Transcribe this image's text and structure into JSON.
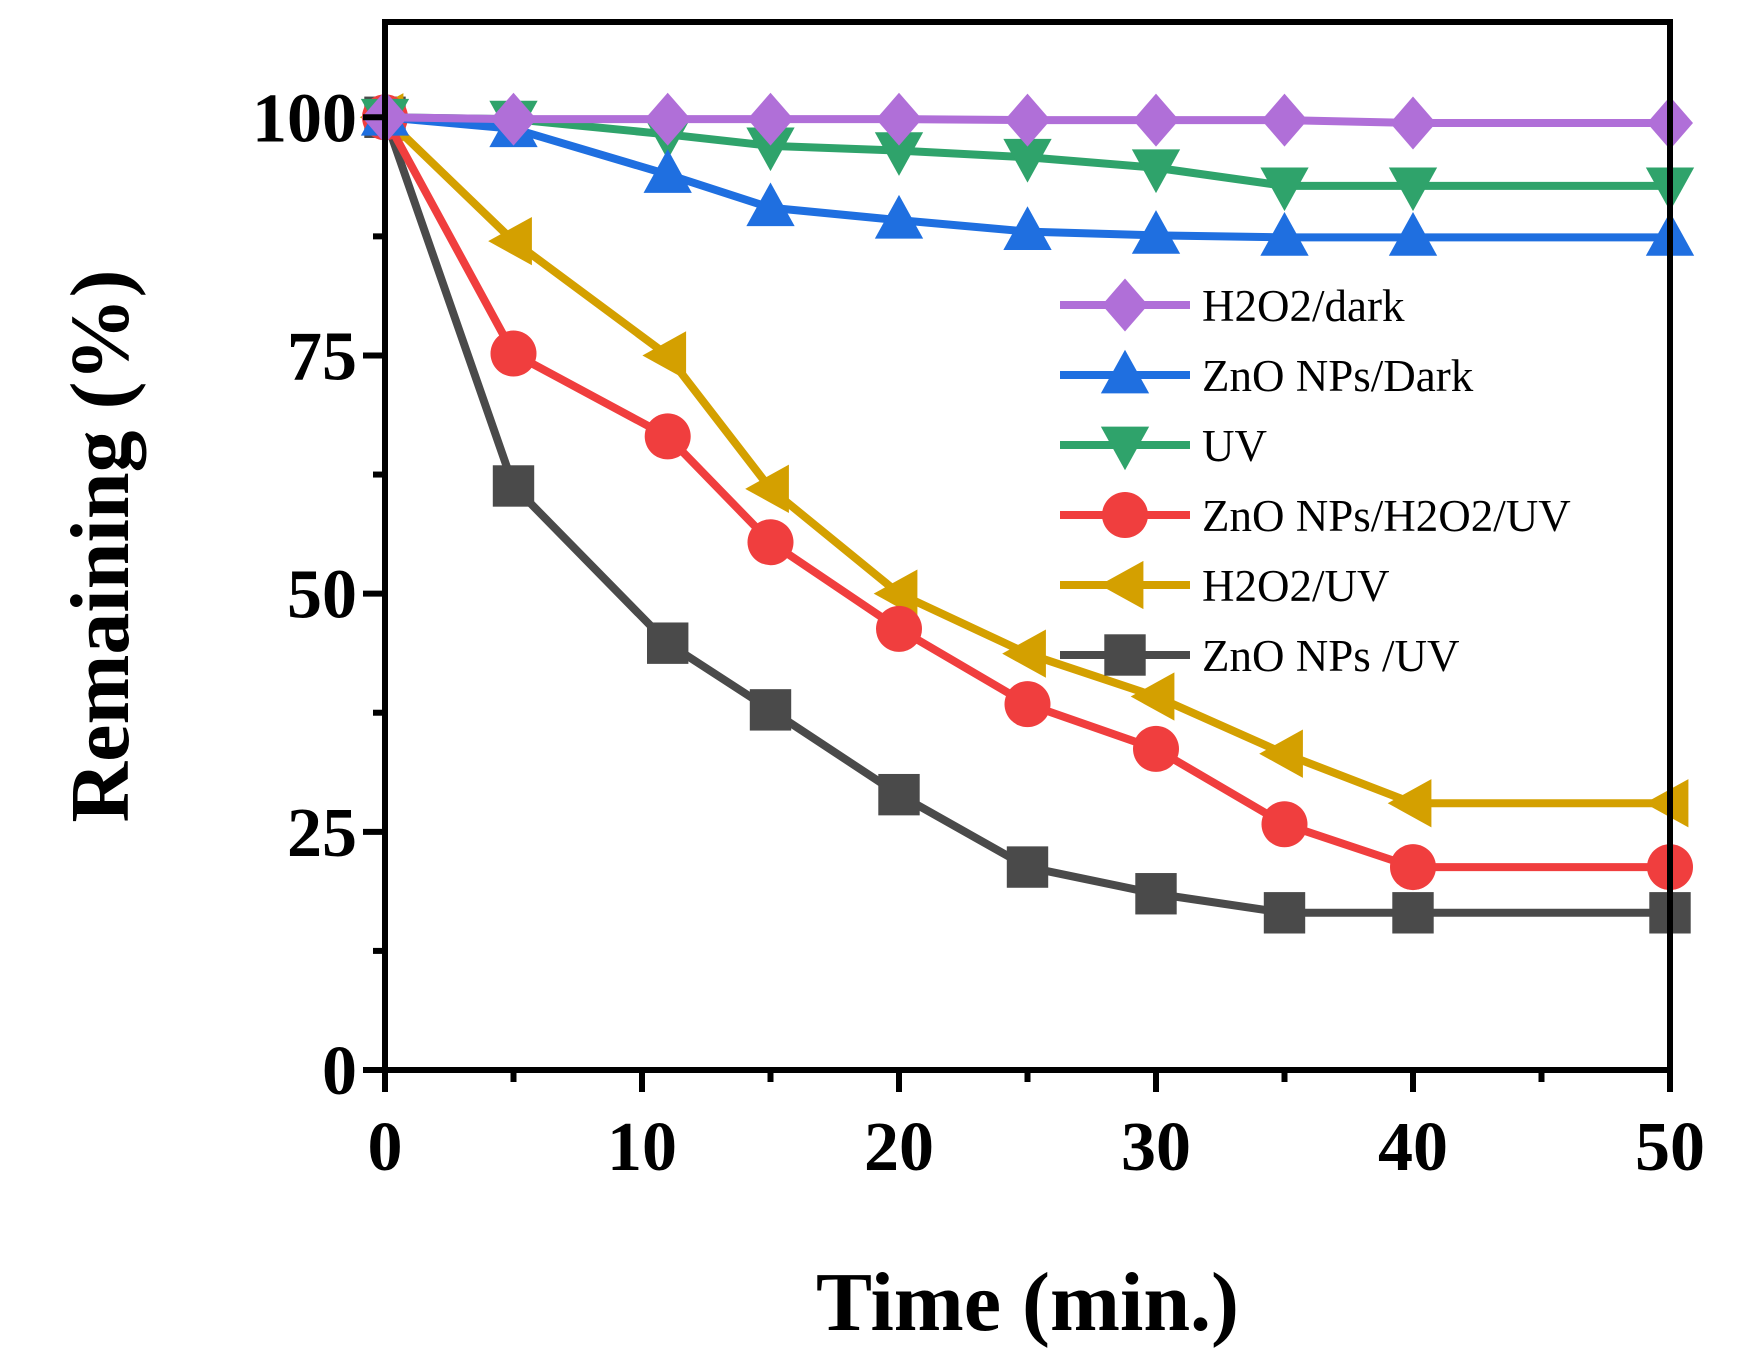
{
  "chart_data": {
    "type": "line",
    "title": "",
    "xlabel": "Time (min.)",
    "ylabel": "Remaining (%)",
    "xlim": [
      0,
      50
    ],
    "ylim": [
      0,
      110
    ],
    "xticks": [
      0,
      10,
      20,
      30,
      40,
      50
    ],
    "yticks": [
      0,
      25,
      50,
      75,
      100
    ],
    "xtick_labels": [
      "0",
      "10",
      "20",
      "30",
      "40",
      "50"
    ],
    "ytick_labels": [
      "0",
      "25",
      "50",
      "75",
      "100"
    ],
    "grid": false,
    "legend_position": "right",
    "series": [
      {
        "name": "H2O2/dark",
        "color": "#b06fd8",
        "marker": "diamond",
        "x": [
          0,
          5,
          11,
          15,
          20,
          25,
          30,
          35,
          40,
          50
        ],
        "y": [
          100,
          99.8,
          99.8,
          99.8,
          99.8,
          99.7,
          99.7,
          99.7,
          99.4,
          99.4
        ]
      },
      {
        "name": "ZnO NPs/Dark",
        "color": "#1f6fe0",
        "marker": "triangle-up",
        "x": [
          0,
          5,
          11,
          15,
          20,
          25,
          30,
          35,
          40,
          50
        ],
        "y": [
          100,
          98.8,
          94,
          90.5,
          89.2,
          88,
          87.6,
          87.4,
          87.4,
          87.4
        ]
      },
      {
        "name": "UV",
        "color": "#2fa36b",
        "marker": "triangle-down",
        "x": [
          0,
          5,
          11,
          15,
          20,
          25,
          30,
          35,
          40,
          50
        ],
        "y": [
          100,
          99.8,
          98.2,
          97,
          96.5,
          95.8,
          94.7,
          92.8,
          92.8,
          92.8
        ]
      },
      {
        "name": "ZnO NPs/H2O2/UV",
        "color": "#f03e3e",
        "marker": "circle",
        "x": [
          0,
          5,
          11,
          15,
          20,
          25,
          30,
          35,
          40,
          50
        ],
        "y": [
          100,
          75.2,
          66.5,
          55.4,
          46.3,
          38.4,
          33.7,
          25.8,
          21.3,
          21.3
        ]
      },
      {
        "name": "H2O2/UV",
        "color": "#d4a000",
        "marker": "triangle-left",
        "x": [
          0,
          5,
          11,
          15,
          20,
          25,
          30,
          35,
          40,
          50
        ],
        "y": [
          100,
          87,
          75,
          61,
          50,
          43.7,
          39.2,
          33.2,
          28,
          28
        ]
      },
      {
        "name": "ZnO NPs /UV",
        "color": "#4a4a4a",
        "marker": "square",
        "x": [
          0,
          5,
          11,
          15,
          20,
          25,
          30,
          35,
          40,
          50
        ],
        "y": [
          100,
          61.3,
          44.8,
          37.8,
          28.9,
          21.3,
          18.5,
          16.5,
          16.5,
          16.5
        ]
      }
    ]
  }
}
